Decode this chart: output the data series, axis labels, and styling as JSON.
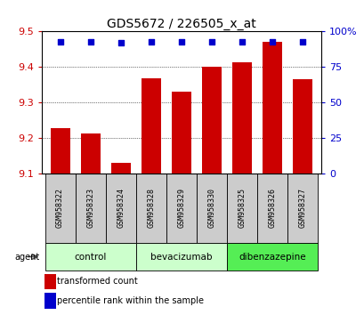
{
  "title": "GDS5672 / 226505_x_at",
  "samples": [
    "GSM958322",
    "GSM958323",
    "GSM958324",
    "GSM958328",
    "GSM958329",
    "GSM958330",
    "GSM958325",
    "GSM958326",
    "GSM958327"
  ],
  "transformed_counts": [
    9.228,
    9.212,
    9.13,
    9.368,
    9.33,
    9.4,
    9.412,
    9.47,
    9.365
  ],
  "percentile_ranks": [
    93,
    93,
    92,
    93,
    93,
    93,
    93,
    93,
    93
  ],
  "ylim_left": [
    9.1,
    9.5
  ],
  "ylim_right": [
    0,
    100
  ],
  "yticks_left": [
    9.1,
    9.2,
    9.3,
    9.4,
    9.5
  ],
  "yticks_right": [
    0,
    25,
    50,
    75,
    100
  ],
  "bar_color": "#cc0000",
  "dot_color": "#0000cc",
  "baseline": 9.1,
  "groups": [
    {
      "label": "control",
      "indices": [
        0,
        1,
        2
      ],
      "color": "#ccffcc"
    },
    {
      "label": "bevacizumab",
      "indices": [
        3,
        4,
        5
      ],
      "color": "#ccffcc"
    },
    {
      "label": "dibenzazepine",
      "indices": [
        6,
        7,
        8
      ],
      "color": "#55ee55"
    }
  ],
  "legend_bar_label": "transformed count",
  "legend_dot_label": "percentile rank within the sample",
  "title_fontsize": 10,
  "tick_fontsize": 8,
  "sample_fontsize": 6,
  "group_fontsize": 7.5,
  "legend_fontsize": 7
}
